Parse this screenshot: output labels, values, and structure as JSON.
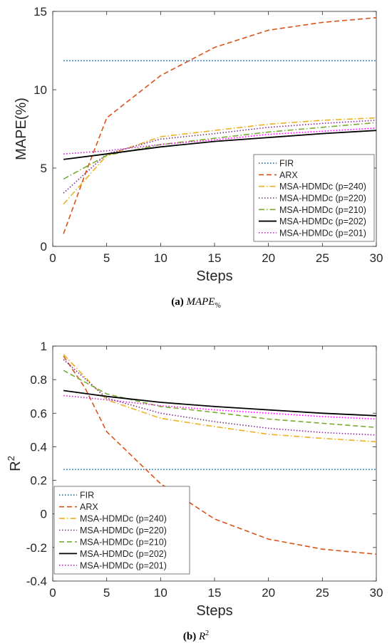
{
  "chart_data": [
    {
      "type": "line",
      "caption_label": "(a)",
      "caption_text": "MAPE",
      "caption_sub": "%",
      "xlabel": "Steps",
      "ylabel": "MAPE(%)",
      "xlim": [
        0,
        30
      ],
      "ylim": [
        0,
        15
      ],
      "xticks": [
        0,
        5,
        10,
        15,
        20,
        25,
        30
      ],
      "yticks": [
        0,
        5,
        10,
        15
      ],
      "grid": false,
      "legend_position": "bottom-right",
      "series": [
        {
          "name": "FIR",
          "color": "#0072BD",
          "dash": "dotted",
          "x": [
            1,
            30
          ],
          "y": [
            11.85,
            11.85
          ]
        },
        {
          "name": "ARX",
          "color": "#D95319",
          "dash": "dashed",
          "x": [
            1,
            3,
            5,
            10,
            15,
            20,
            25,
            30
          ],
          "y": [
            0.8,
            4.6,
            8.2,
            10.9,
            12.7,
            13.8,
            14.3,
            14.6
          ]
        },
        {
          "name": "MSA-HDMDc (p=240)",
          "color": "#EDB120",
          "dash": "dashdot",
          "x": [
            1,
            5,
            10,
            15,
            20,
            25,
            30
          ],
          "y": [
            2.7,
            5.8,
            7.0,
            7.4,
            7.8,
            8.05,
            8.2
          ]
        },
        {
          "name": "MSA-HDMDc (p=220)",
          "color": "#7E2F8E",
          "dash": "dotted",
          "x": [
            1,
            5,
            10,
            15,
            20,
            25,
            30
          ],
          "y": [
            3.4,
            5.9,
            6.85,
            7.2,
            7.6,
            7.85,
            8.05
          ]
        },
        {
          "name": "MSA-HDMDc (p=210)",
          "color": "#77AC30",
          "dash": "dashdot",
          "x": [
            1,
            5,
            10,
            15,
            20,
            25,
            30
          ],
          "y": [
            4.3,
            5.8,
            6.5,
            6.9,
            7.3,
            7.6,
            7.9
          ]
        },
        {
          "name": "MSA-HDMDc (p=202)",
          "color": "#000000",
          "dash": "solid",
          "x": [
            1,
            5,
            10,
            15,
            20,
            25,
            30
          ],
          "y": [
            5.55,
            5.9,
            6.35,
            6.7,
            6.95,
            7.2,
            7.4
          ]
        },
        {
          "name": "MSA-HDMDc (p=201)",
          "color": "#FF00FF",
          "dash": "dotted",
          "x": [
            1,
            5,
            10,
            15,
            20,
            25,
            30
          ],
          "y": [
            5.9,
            6.1,
            6.5,
            6.8,
            7.15,
            7.35,
            7.55
          ]
        }
      ]
    },
    {
      "type": "line",
      "caption_label": "(b)",
      "caption_text": "R",
      "caption_sup": "2",
      "xlabel": "Steps",
      "ylabel": "R",
      "ylabel_sup": "2",
      "xlim": [
        0,
        30
      ],
      "ylim": [
        -0.4,
        1
      ],
      "xticks": [
        0,
        5,
        10,
        15,
        20,
        25,
        30
      ],
      "yticks": [
        -0.4,
        -0.2,
        0,
        0.2,
        0.4,
        0.6,
        0.8,
        1
      ],
      "grid": false,
      "legend_position": "bottom-left",
      "series": [
        {
          "name": "FIR",
          "color": "#0072BD",
          "dash": "dotted",
          "x": [
            1,
            30
          ],
          "y": [
            0.265,
            0.265
          ]
        },
        {
          "name": "ARX",
          "color": "#D95319",
          "dash": "dashed",
          "x": [
            1,
            3,
            5,
            10,
            15,
            20,
            25,
            30
          ],
          "y": [
            0.94,
            0.75,
            0.49,
            0.18,
            -0.03,
            -0.15,
            -0.21,
            -0.24
          ]
        },
        {
          "name": "MSA-HDMDc (p=240)",
          "color": "#EDB120",
          "dash": "dashdot",
          "x": [
            1,
            5,
            10,
            15,
            20,
            25,
            30
          ],
          "y": [
            0.95,
            0.68,
            0.57,
            0.52,
            0.475,
            0.45,
            0.43
          ]
        },
        {
          "name": "MSA-HDMDc (p=220)",
          "color": "#7E2F8E",
          "dash": "dotted",
          "x": [
            1,
            5,
            10,
            15,
            20,
            25,
            30
          ],
          "y": [
            0.92,
            0.69,
            0.6,
            0.55,
            0.51,
            0.485,
            0.47
          ]
        },
        {
          "name": "MSA-HDMDc (p=210)",
          "color": "#77AC30",
          "dash": "dashed",
          "x": [
            1,
            5,
            10,
            15,
            20,
            25,
            30
          ],
          "y": [
            0.855,
            0.715,
            0.64,
            0.605,
            0.565,
            0.54,
            0.515
          ]
        },
        {
          "name": "MSA-HDMDc (p=202)",
          "color": "#000000",
          "dash": "solid",
          "x": [
            1,
            5,
            10,
            15,
            20,
            25,
            30
          ],
          "y": [
            0.735,
            0.7,
            0.665,
            0.64,
            0.62,
            0.6,
            0.585
          ]
        },
        {
          "name": "MSA-HDMDc (p=201)",
          "color": "#FF00FF",
          "dash": "dotted",
          "x": [
            1,
            5,
            10,
            15,
            20,
            25,
            30
          ],
          "y": [
            0.705,
            0.68,
            0.645,
            0.62,
            0.6,
            0.58,
            0.565
          ]
        }
      ]
    }
  ]
}
